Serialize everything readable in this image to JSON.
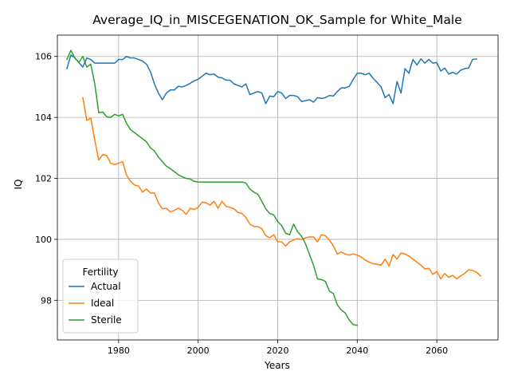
{
  "chart_data": {
    "type": "line",
    "title": "Average_IQ_in_MISCEGENATION_OK_Sample for White_Male",
    "xlabel": "Years",
    "ylabel": "IQ",
    "xlim": [
      1964.6,
      2075.4
    ],
    "ylim": [
      96.7,
      106.7
    ],
    "xticks": [
      1980,
      2000,
      2020,
      2040,
      2060
    ],
    "yticks": [
      98,
      100,
      102,
      104,
      106
    ],
    "grid": true,
    "legend": {
      "title": "Fertility",
      "placement": "lower-left"
    },
    "series": [
      {
        "name": "Actual",
        "color": "#1f77b4",
        "points": [
          [
            1967,
            105.6
          ],
          [
            1968,
            106.05
          ],
          [
            1969,
            105.95
          ],
          [
            1970,
            105.8
          ],
          [
            1971,
            105.65
          ],
          [
            1972,
            105.95
          ],
          [
            1973,
            105.9
          ],
          [
            1974,
            105.78
          ],
          [
            1975,
            105.78
          ],
          [
            1976,
            105.78
          ],
          [
            1977,
            105.78
          ],
          [
            1978,
            105.78
          ],
          [
            1979,
            105.78
          ],
          [
            1980,
            105.9
          ],
          [
            1981,
            105.9
          ],
          [
            1982,
            106.0
          ],
          [
            1983,
            105.95
          ],
          [
            1984,
            105.95
          ],
          [
            1985,
            105.9
          ],
          [
            1986,
            105.85
          ],
          [
            1987,
            105.75
          ],
          [
            1988,
            105.5
          ],
          [
            1989,
            105.1
          ],
          [
            1990,
            104.8
          ],
          [
            1991,
            104.58
          ],
          [
            1992,
            104.8
          ],
          [
            1993,
            104.9
          ],
          [
            1994,
            104.9
          ],
          [
            1995,
            105.02
          ],
          [
            1996,
            105.0
          ],
          [
            1997,
            105.05
          ],
          [
            1998,
            105.12
          ],
          [
            1999,
            105.2
          ],
          [
            2000,
            105.25
          ],
          [
            2001,
            105.35
          ],
          [
            2002,
            105.45
          ],
          [
            2003,
            105.4
          ],
          [
            2004,
            105.42
          ],
          [
            2005,
            105.32
          ],
          [
            2006,
            105.3
          ],
          [
            2007,
            105.22
          ],
          [
            2008,
            105.22
          ],
          [
            2009,
            105.1
          ],
          [
            2010,
            105.05
          ],
          [
            2011,
            105.0
          ],
          [
            2012,
            105.1
          ],
          [
            2013,
            104.75
          ],
          [
            2014,
            104.8
          ],
          [
            2015,
            104.85
          ],
          [
            2016,
            104.8
          ],
          [
            2017,
            104.45
          ],
          [
            2018,
            104.7
          ],
          [
            2019,
            104.68
          ],
          [
            2020,
            104.85
          ],
          [
            2021,
            104.8
          ],
          [
            2022,
            104.62
          ],
          [
            2023,
            104.72
          ],
          [
            2024,
            104.72
          ],
          [
            2025,
            104.68
          ],
          [
            2026,
            104.52
          ],
          [
            2027,
            104.55
          ],
          [
            2028,
            104.58
          ],
          [
            2029,
            104.5
          ],
          [
            2030,
            104.65
          ],
          [
            2031,
            104.62
          ],
          [
            2032,
            104.65
          ],
          [
            2033,
            104.72
          ],
          [
            2034,
            104.7
          ],
          [
            2035,
            104.85
          ],
          [
            2036,
            104.97
          ],
          [
            2037,
            104.97
          ],
          [
            2038,
            105.02
          ],
          [
            2039,
            105.25
          ],
          [
            2040,
            105.45
          ],
          [
            2041,
            105.45
          ],
          [
            2042,
            105.4
          ],
          [
            2043,
            105.45
          ],
          [
            2044,
            105.28
          ],
          [
            2045,
            105.15
          ],
          [
            2046,
            105.0
          ],
          [
            2047,
            104.65
          ],
          [
            2048,
            104.75
          ],
          [
            2049,
            104.45
          ],
          [
            2050,
            105.18
          ],
          [
            2051,
            104.8
          ],
          [
            2052,
            105.6
          ],
          [
            2053,
            105.45
          ],
          [
            2054,
            105.9
          ],
          [
            2055,
            105.72
          ],
          [
            2056,
            105.92
          ],
          [
            2057,
            105.78
          ],
          [
            2058,
            105.9
          ],
          [
            2059,
            105.78
          ],
          [
            2060,
            105.8
          ],
          [
            2061,
            105.52
          ],
          [
            2062,
            105.62
          ],
          [
            2063,
            105.42
          ],
          [
            2064,
            105.48
          ],
          [
            2065,
            105.42
          ],
          [
            2066,
            105.55
          ],
          [
            2067,
            105.6
          ],
          [
            2068,
            105.62
          ],
          [
            2069,
            105.9
          ],
          [
            2070,
            105.92
          ]
        ]
      },
      {
        "name": "Ideal",
        "color": "#ff7f0e",
        "points": [
          [
            1971,
            104.65
          ],
          [
            1972,
            103.9
          ],
          [
            1973,
            103.98
          ],
          [
            1974,
            103.25
          ],
          [
            1975,
            102.6
          ],
          [
            1976,
            102.78
          ],
          [
            1977,
            102.75
          ],
          [
            1978,
            102.5
          ],
          [
            1979,
            102.45
          ],
          [
            1980,
            102.5
          ],
          [
            1981,
            102.55
          ],
          [
            1982,
            102.1
          ],
          [
            1983,
            101.9
          ],
          [
            1984,
            101.78
          ],
          [
            1985,
            101.75
          ],
          [
            1986,
            101.55
          ],
          [
            1987,
            101.65
          ],
          [
            1988,
            101.52
          ],
          [
            1989,
            101.52
          ],
          [
            1990,
            101.2
          ],
          [
            1991,
            101.0
          ],
          [
            1992,
            101.02
          ],
          [
            1993,
            100.9
          ],
          [
            1994,
            100.95
          ],
          [
            1995,
            101.02
          ],
          [
            1996,
            100.95
          ],
          [
            1997,
            100.82
          ],
          [
            1998,
            101.02
          ],
          [
            1999,
            100.98
          ],
          [
            2000,
            101.05
          ],
          [
            2001,
            101.22
          ],
          [
            2002,
            101.2
          ],
          [
            2003,
            101.12
          ],
          [
            2004,
            101.25
          ],
          [
            2005,
            101.02
          ],
          [
            2006,
            101.25
          ],
          [
            2007,
            101.08
          ],
          [
            2008,
            101.05
          ],
          [
            2009,
            101.0
          ],
          [
            2010,
            100.88
          ],
          [
            2011,
            100.85
          ],
          [
            2012,
            100.72
          ],
          [
            2013,
            100.5
          ],
          [
            2014,
            100.42
          ],
          [
            2015,
            100.42
          ],
          [
            2016,
            100.35
          ],
          [
            2017,
            100.12
          ],
          [
            2018,
            100.05
          ],
          [
            2019,
            100.15
          ],
          [
            2020,
            99.92
          ],
          [
            2021,
            99.92
          ],
          [
            2022,
            99.78
          ],
          [
            2023,
            99.92
          ],
          [
            2024,
            99.98
          ],
          [
            2025,
            100.02
          ],
          [
            2026,
            100.0
          ],
          [
            2027,
            100.05
          ],
          [
            2028,
            100.08
          ],
          [
            2029,
            100.08
          ],
          [
            2030,
            99.92
          ],
          [
            2031,
            100.15
          ],
          [
            2032,
            100.12
          ],
          [
            2033,
            99.98
          ],
          [
            2034,
            99.78
          ],
          [
            2035,
            99.52
          ],
          [
            2036,
            99.58
          ],
          [
            2037,
            99.52
          ],
          [
            2038,
            99.48
          ],
          [
            2039,
            99.52
          ],
          [
            2040,
            99.48
          ],
          [
            2041,
            99.42
          ],
          [
            2042,
            99.32
          ],
          [
            2043,
            99.25
          ],
          [
            2044,
            99.2
          ],
          [
            2045,
            99.18
          ],
          [
            2046,
            99.15
          ],
          [
            2047,
            99.35
          ],
          [
            2048,
            99.12
          ],
          [
            2049,
            99.5
          ],
          [
            2050,
            99.35
          ],
          [
            2051,
            99.55
          ],
          [
            2052,
            99.52
          ],
          [
            2053,
            99.45
          ],
          [
            2054,
            99.35
          ],
          [
            2055,
            99.25
          ],
          [
            2056,
            99.15
          ],
          [
            2057,
            99.03
          ],
          [
            2058,
            99.05
          ],
          [
            2059,
            98.85
          ],
          [
            2060,
            98.95
          ],
          [
            2061,
            98.7
          ],
          [
            2062,
            98.88
          ],
          [
            2063,
            98.75
          ],
          [
            2064,
            98.82
          ],
          [
            2065,
            98.7
          ],
          [
            2066,
            98.8
          ],
          [
            2067,
            98.88
          ],
          [
            2068,
            99.0
          ],
          [
            2069,
            98.98
          ],
          [
            2070,
            98.92
          ],
          [
            2071,
            98.8
          ]
        ]
      },
      {
        "name": "Sterile",
        "color": "#2ca02c",
        "points": [
          [
            1967,
            105.9
          ],
          [
            1968,
            106.2
          ],
          [
            1969,
            105.95
          ],
          [
            1970,
            105.8
          ],
          [
            1971,
            106.0
          ],
          [
            1972,
            105.65
          ],
          [
            1973,
            105.75
          ],
          [
            1974,
            105.1
          ],
          [
            1975,
            104.15
          ],
          [
            1976,
            104.18
          ],
          [
            1977,
            104.02
          ],
          [
            1978,
            104.0
          ],
          [
            1979,
            104.1
          ],
          [
            1980,
            104.05
          ],
          [
            1981,
            104.1
          ],
          [
            1982,
            103.8
          ],
          [
            1983,
            103.6
          ],
          [
            1984,
            103.5
          ],
          [
            1985,
            103.4
          ],
          [
            1986,
            103.3
          ],
          [
            1987,
            103.2
          ],
          [
            1988,
            103.0
          ],
          [
            1989,
            102.9
          ],
          [
            1990,
            102.7
          ],
          [
            1991,
            102.55
          ],
          [
            1992,
            102.4
          ],
          [
            1993,
            102.32
          ],
          [
            1994,
            102.22
          ],
          [
            1995,
            102.12
          ],
          [
            1996,
            102.05
          ],
          [
            1997,
            102.0
          ],
          [
            1998,
            101.98
          ],
          [
            1999,
            101.9
          ],
          [
            2000,
            101.88
          ],
          [
            2001,
            101.88
          ],
          [
            2002,
            101.88
          ],
          [
            2003,
            101.88
          ],
          [
            2004,
            101.88
          ],
          [
            2005,
            101.88
          ],
          [
            2006,
            101.88
          ],
          [
            2007,
            101.88
          ],
          [
            2008,
            101.88
          ],
          [
            2009,
            101.88
          ],
          [
            2010,
            101.88
          ],
          [
            2011,
            101.88
          ],
          [
            2012,
            101.85
          ],
          [
            2013,
            101.65
          ],
          [
            2014,
            101.55
          ],
          [
            2015,
            101.48
          ],
          [
            2016,
            101.25
          ],
          [
            2017,
            101.0
          ],
          [
            2018,
            100.85
          ],
          [
            2019,
            100.8
          ],
          [
            2020,
            100.58
          ],
          [
            2021,
            100.45
          ],
          [
            2022,
            100.2
          ],
          [
            2023,
            100.15
          ],
          [
            2024,
            100.5
          ],
          [
            2025,
            100.25
          ],
          [
            2026,
            100.1
          ],
          [
            2027,
            99.85
          ],
          [
            2028,
            99.5
          ],
          [
            2029,
            99.15
          ],
          [
            2030,
            98.7
          ],
          [
            2031,
            98.68
          ],
          [
            2032,
            98.62
          ],
          [
            2033,
            98.3
          ],
          [
            2034,
            98.22
          ],
          [
            2035,
            97.85
          ],
          [
            2036,
            97.68
          ],
          [
            2037,
            97.58
          ],
          [
            2038,
            97.35
          ],
          [
            2039,
            97.2
          ],
          [
            2040,
            97.18
          ]
        ]
      }
    ]
  }
}
